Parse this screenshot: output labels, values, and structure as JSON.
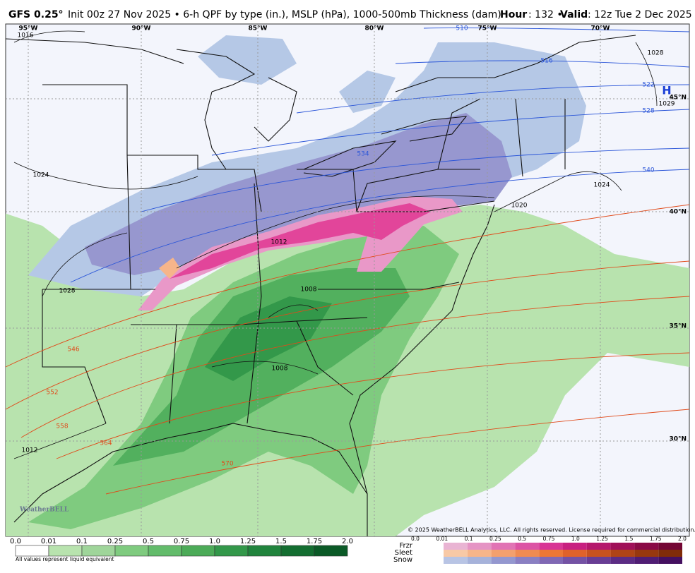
{
  "header": {
    "model": "GFS 0.25°",
    "description": "Init 00z 27 Nov 2025 • 6-h QPF by type (in.), MSLP (hPa), 1000-500mb Thickness (dam)",
    "hour_label": "Hour",
    "hour": ": 132 • ",
    "valid_label": "Valid",
    "valid": ": 12z Tue 2 Dec 2025"
  },
  "map": {
    "longitudes": [
      "95°W",
      "90°W",
      "85°W",
      "80°W",
      "75°W",
      "70°W"
    ],
    "latitudes": [
      "45°N",
      "40°N",
      "35°N",
      "30°N"
    ],
    "isobar_labels": [
      "1016",
      "1024",
      "1028",
      "1012",
      "1008",
      "1008",
      "1012",
      "1020",
      "1024",
      "1028",
      "1029"
    ],
    "high_label": "H",
    "thickness_labels_cold": [
      "510",
      "516",
      "522",
      "528",
      "534",
      "540"
    ],
    "thickness_labels_warm": [
      "546",
      "552",
      "558",
      "564",
      "570"
    ],
    "copyright": "© 2025 WeatherBELL Analytics, LLC. All rights reserved. License required for commercial distribution.",
    "logo": "WeatherBELL"
  },
  "legend": {
    "rain_ticks": [
      "0.0",
      "0.01",
      "0.1",
      "0.25",
      "0.5",
      "0.75",
      "1.0",
      "1.25",
      "1.5",
      "1.75",
      "2.0"
    ],
    "note": "All values represent liquid equivalent",
    "mixed_ticks": [
      "0.0",
      "0.01",
      "0.1",
      "0.25",
      "0.5",
      "0.75",
      "1.0",
      "1.25",
      "1.5",
      "1.75",
      "2.0"
    ],
    "types": [
      "Frzr",
      "Sleet",
      "Snow"
    ]
  }
}
